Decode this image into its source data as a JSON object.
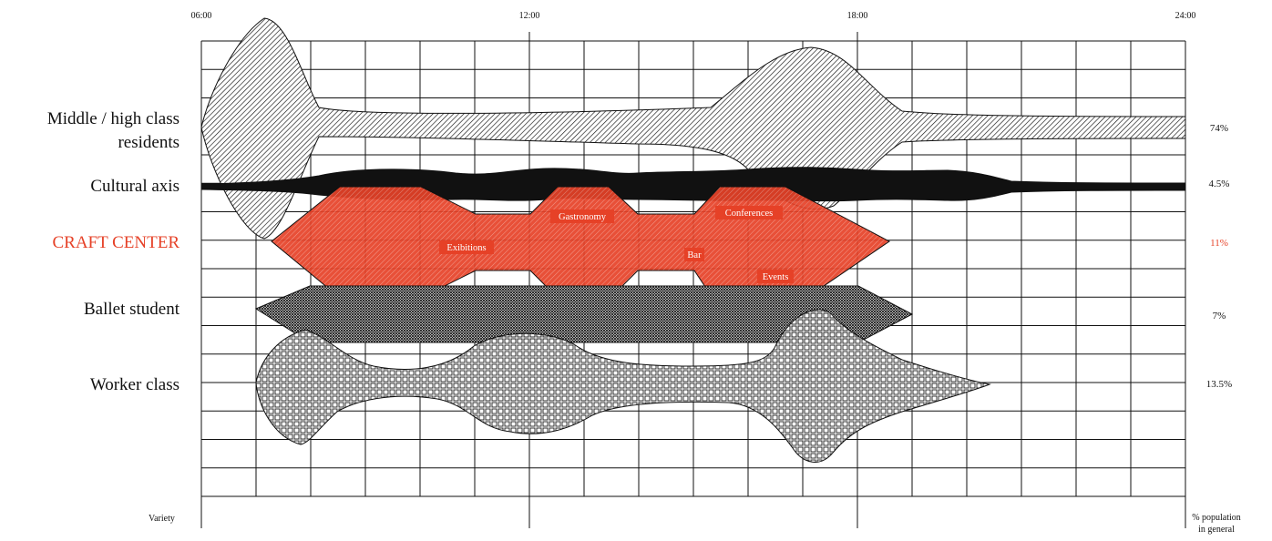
{
  "time_axis": {
    "ticks": [
      "06:00",
      "12:00",
      "18:00",
      "24:00"
    ],
    "start_hour": 6,
    "end_hour": 24
  },
  "rows": [
    {
      "label_lines": [
        "Middle / high class",
        "residents"
      ],
      "percent": "74%",
      "accent": false
    },
    {
      "label_lines": [
        "Cultural axis"
      ],
      "percent": "4.5%",
      "accent": false
    },
    {
      "label_lines": [
        "CRAFT CENTER"
      ],
      "percent": "11%",
      "accent": true
    },
    {
      "label_lines": [
        "Ballet student"
      ],
      "percent": "7%",
      "accent": false
    },
    {
      "label_lines": [
        "Worker class"
      ],
      "percent": "13.5%",
      "accent": false
    }
  ],
  "activities": [
    {
      "label": "Exibitions"
    },
    {
      "label": "Gastronomy"
    },
    {
      "label": "Conferences"
    },
    {
      "label": "Bar"
    },
    {
      "label": "Events"
    }
  ],
  "footer": {
    "left_label": "Variety",
    "right_label_lines": [
      "% population",
      "in general"
    ]
  },
  "colors": {
    "accent": "#e64127",
    "ink": "#111111",
    "grid": "#111111"
  }
}
